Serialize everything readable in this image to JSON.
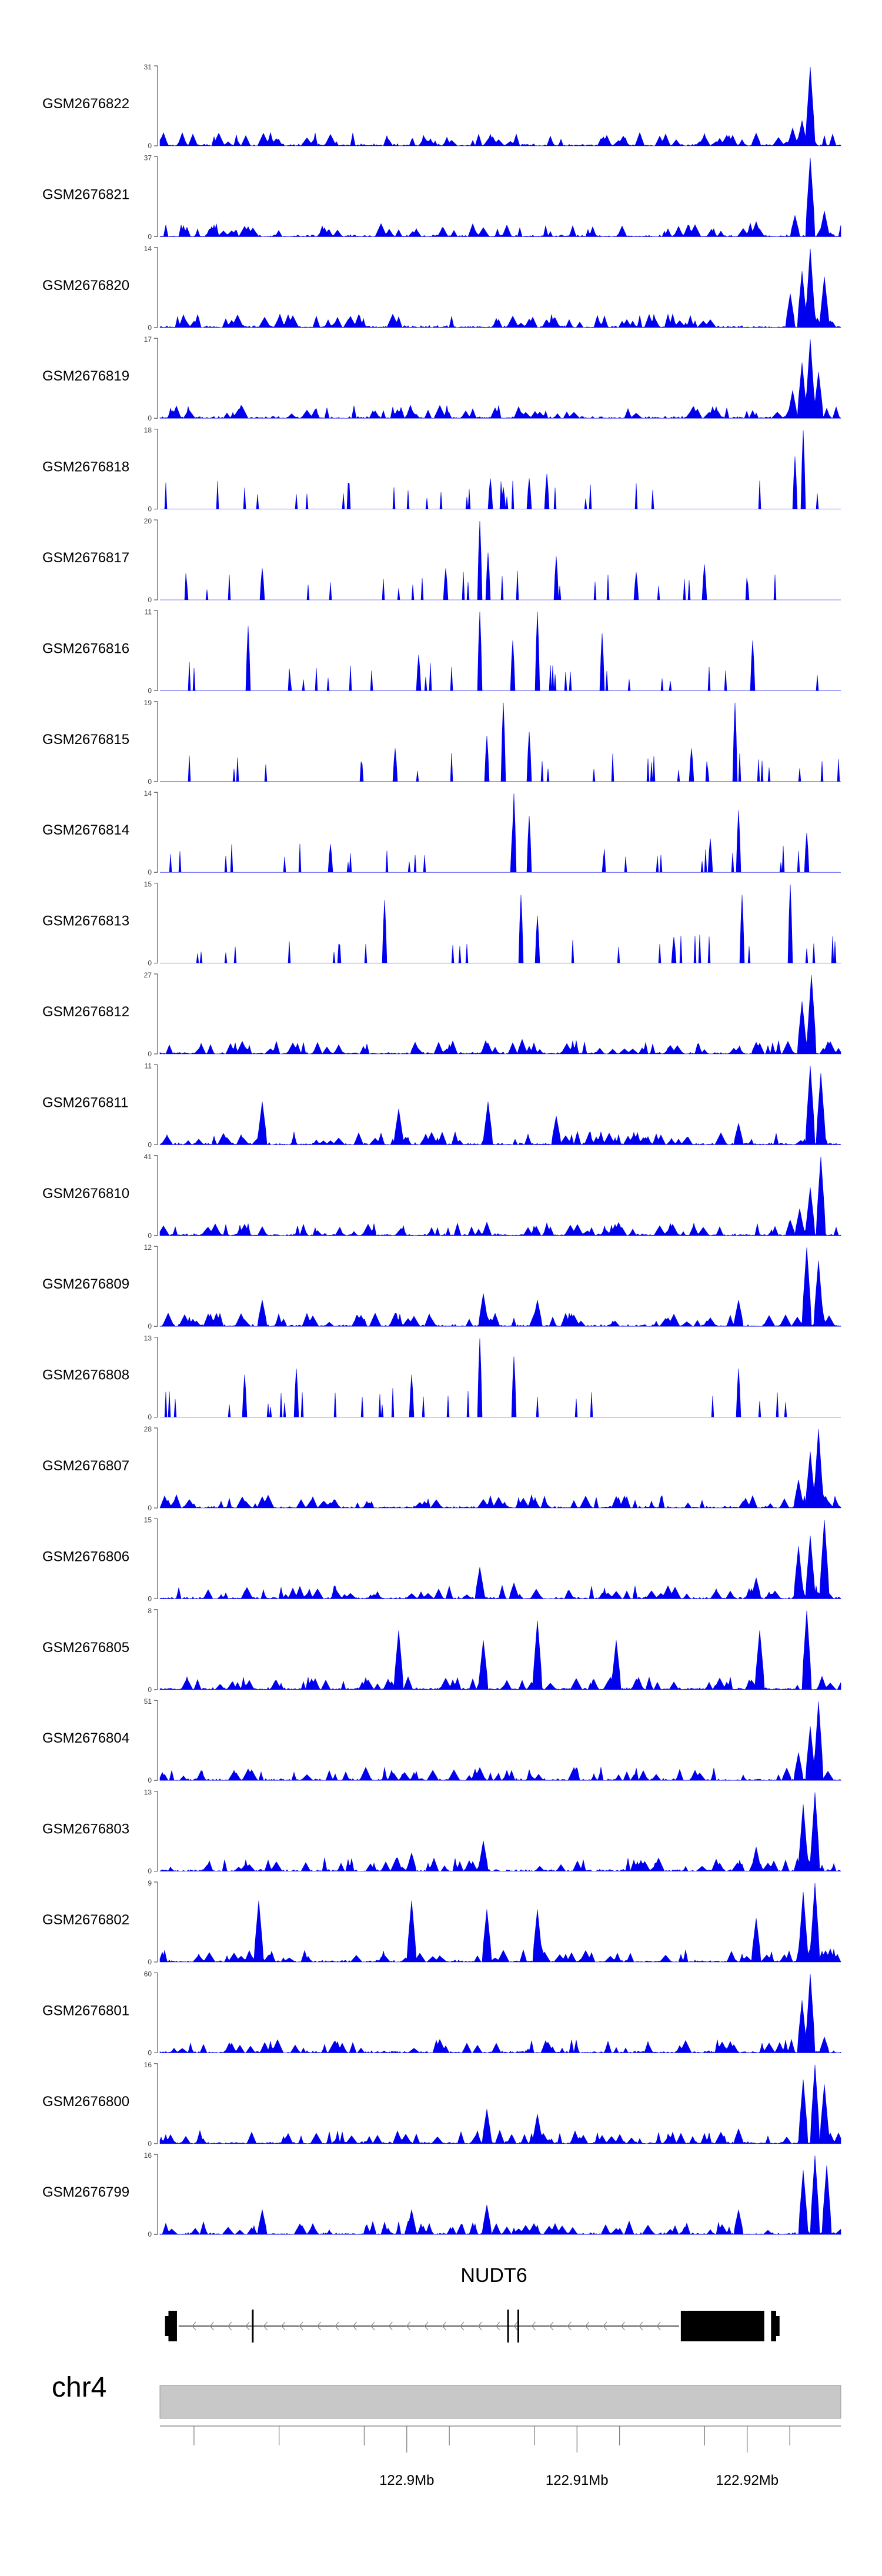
{
  "chart_data": {
    "type": "area",
    "title": "",
    "region": {
      "chromosome": "chr4",
      "start": 122.8855,
      "end": 122.9255,
      "unit": "Mb",
      "axis_ticks": [
        122.9,
        122.91,
        122.92
      ],
      "axis_labels": [
        "122.9Mb",
        "122.91Mb",
        "122.92Mb"
      ],
      "minor_ticks": [
        122.8875,
        122.8925,
        122.8975,
        122.9025,
        122.9075,
        122.9125,
        122.9175,
        122.9225
      ]
    },
    "tracks": [
      {
        "name": "GSM2676822",
        "ymax": "31",
        "ymin": "0",
        "style": "dense",
        "peaks": [
          [
            122.9237,
            31
          ],
          [
            122.9232,
            10
          ],
          [
            122.9227,
            7
          ],
          [
            122.9205,
            5
          ]
        ]
      },
      {
        "name": "GSM2676821",
        "ymax": "37",
        "ymin": "0",
        "style": "dense",
        "peaks": [
          [
            122.9237,
            37
          ],
          [
            122.9245,
            12
          ],
          [
            122.9228,
            10
          ],
          [
            122.9205,
            7
          ]
        ]
      },
      {
        "name": "GSM2676820",
        "ymax": "14",
        "ymin": "0",
        "style": "dense",
        "peaks": [
          [
            122.9237,
            14
          ],
          [
            122.9232,
            10
          ],
          [
            122.9245,
            9
          ],
          [
            122.9225,
            6
          ]
        ]
      },
      {
        "name": "GSM2676819",
        "ymax": "17",
        "ymin": "0",
        "style": "dense",
        "peaks": [
          [
            122.9237,
            17
          ],
          [
            122.9232,
            12
          ],
          [
            122.9242,
            10
          ],
          [
            122.9227,
            6
          ]
        ]
      },
      {
        "name": "GSM2676818",
        "ymax": "18",
        "ymin": "0",
        "style": "sparse",
        "peaks": [
          [
            122.9233,
            18
          ],
          [
            122.9228,
            12
          ],
          [
            122.9082,
            8
          ],
          [
            122.9072,
            7
          ],
          [
            122.9049,
            7
          ],
          [
            122.9057,
            5
          ]
        ]
      },
      {
        "name": "GSM2676817",
        "ymax": "20",
        "ymin": "0",
        "style": "sparse",
        "peaks": [
          [
            122.9043,
            20
          ],
          [
            122.9048,
            12
          ],
          [
            122.9088,
            11
          ],
          [
            122.9023,
            8
          ],
          [
            122.8915,
            8
          ],
          [
            122.9175,
            9
          ],
          [
            122.9135,
            7
          ]
        ]
      },
      {
        "name": "GSM2676816",
        "ymax": "11",
        "ymin": "0",
        "style": "sparse",
        "peaks": [
          [
            122.9043,
            11
          ],
          [
            122.9077,
            11
          ],
          [
            122.8907,
            9
          ],
          [
            122.9115,
            8
          ],
          [
            122.9203,
            7
          ],
          [
            122.9062,
            7
          ],
          [
            122.9007,
            5
          ]
        ]
      },
      {
        "name": "GSM2676815",
        "ymax": "19",
        "ymin": "0",
        "style": "sparse",
        "peaks": [
          [
            122.9193,
            19
          ],
          [
            122.9057,
            19
          ],
          [
            122.9072,
            12
          ],
          [
            122.9047,
            11
          ],
          [
            122.8993,
            8
          ],
          [
            122.9167,
            8
          ]
        ]
      },
      {
        "name": "GSM2676814",
        "ymax": "14",
        "ymin": "0",
        "style": "sparse",
        "peaks": [
          [
            122.9063,
            14
          ],
          [
            122.9072,
            10
          ],
          [
            122.9195,
            11
          ],
          [
            122.9178,
            6
          ],
          [
            122.8955,
            5
          ],
          [
            122.9235,
            7
          ]
        ]
      },
      {
        "name": "GSM2676813",
        "ymax": "15",
        "ymin": "0",
        "style": "sparse",
        "peaks": [
          [
            122.9225,
            15
          ],
          [
            122.9197,
            13
          ],
          [
            122.9067,
            13
          ],
          [
            122.8987,
            12
          ],
          [
            122.9077,
            9
          ],
          [
            122.9157,
            5
          ]
        ]
      },
      {
        "name": "GSM2676812",
        "ymax": "27",
        "ymin": "0",
        "style": "dense",
        "peaks": [
          [
            122.9238,
            27
          ],
          [
            122.9232,
            18
          ],
          [
            122.9068,
            5
          ],
          [
            122.9005,
            4
          ],
          [
            122.9205,
            4
          ]
        ]
      },
      {
        "name": "GSM2676811",
        "ymax": "11",
        "ymin": "0",
        "style": "dense",
        "peaks": [
          [
            122.9237,
            11
          ],
          [
            122.9243,
            10
          ],
          [
            122.9048,
            6
          ],
          [
            122.8915,
            6
          ],
          [
            122.8995,
            5
          ],
          [
            122.9088,
            4
          ],
          [
            122.9195,
            3
          ]
        ]
      },
      {
        "name": "GSM2676810",
        "ymax": "41",
        "ymin": "0",
        "style": "dense",
        "peaks": [
          [
            122.9243,
            41
          ],
          [
            122.9237,
            25
          ],
          [
            122.9231,
            14
          ],
          [
            122.9225,
            8
          ]
        ]
      },
      {
        "name": "GSM2676809",
        "ymax": "12",
        "ymin": "0",
        "style": "dense",
        "peaks": [
          [
            122.9235,
            12
          ],
          [
            122.9242,
            10
          ],
          [
            122.9045,
            5
          ],
          [
            122.9077,
            4
          ],
          [
            122.8915,
            4
          ],
          [
            122.9195,
            4
          ]
        ]
      },
      {
        "name": "GSM2676808",
        "ymax": "13",
        "ymin": "0",
        "style": "sparse",
        "peaks": [
          [
            122.9043,
            13
          ],
          [
            122.9063,
            10
          ],
          [
            122.9195,
            8
          ],
          [
            122.8935,
            8
          ],
          [
            122.8905,
            7
          ],
          [
            122.9003,
            7
          ]
        ]
      },
      {
        "name": "GSM2676807",
        "ymax": "28",
        "ymin": "0",
        "style": "dense",
        "peaks": [
          [
            122.9242,
            28
          ],
          [
            122.9237,
            20
          ],
          [
            122.923,
            10
          ],
          [
            122.8915,
            4
          ],
          [
            122.9045,
            3
          ]
        ]
      },
      {
        "name": "GSM2676806",
        "ymax": "15",
        "ymin": "0",
        "style": "dense",
        "peaks": [
          [
            122.9245,
            15
          ],
          [
            122.9237,
            12
          ],
          [
            122.923,
            10
          ],
          [
            122.9043,
            6
          ],
          [
            122.9205,
            4
          ],
          [
            122.9063,
            3
          ]
        ]
      },
      {
        "name": "GSM2676805",
        "ymax": "8",
        "ymin": "0",
        "style": "dense",
        "peaks": [
          [
            122.9235,
            8
          ],
          [
            122.9077,
            7
          ],
          [
            122.8995,
            6
          ],
          [
            122.9123,
            5
          ],
          [
            122.9207,
            6
          ],
          [
            122.9045,
            5
          ]
        ]
      },
      {
        "name": "GSM2676804",
        "ymax": "51",
        "ymin": "0",
        "style": "dense",
        "peaks": [
          [
            122.9242,
            51
          ],
          [
            122.9237,
            35
          ],
          [
            122.923,
            18
          ],
          [
            122.9223,
            8
          ]
        ]
      },
      {
        "name": "GSM2676803",
        "ymax": "13",
        "ymin": "0",
        "style": "dense",
        "peaks": [
          [
            122.924,
            13
          ],
          [
            122.9233,
            11
          ],
          [
            122.9045,
            5
          ],
          [
            122.9003,
            3
          ],
          [
            122.9205,
            4
          ]
        ]
      },
      {
        "name": "GSM2676802",
        "ymax": "9",
        "ymin": "0",
        "style": "dense",
        "peaks": [
          [
            122.924,
            9
          ],
          [
            122.9233,
            8
          ],
          [
            122.8913,
            7
          ],
          [
            122.9003,
            7
          ],
          [
            122.9047,
            6
          ],
          [
            122.9077,
            6
          ],
          [
            122.9205,
            5
          ]
        ]
      },
      {
        "name": "GSM2676801",
        "ymax": "60",
        "ymin": "0",
        "style": "dense",
        "peaks": [
          [
            122.9237,
            60
          ],
          [
            122.9232,
            40
          ],
          [
            122.9245,
            12
          ]
        ]
      },
      {
        "name": "GSM2676800",
        "ymax": "16",
        "ymin": "0",
        "style": "dense",
        "peaks": [
          [
            122.924,
            16
          ],
          [
            122.9233,
            13
          ],
          [
            122.9245,
            12
          ],
          [
            122.9047,
            7
          ],
          [
            122.9077,
            6
          ],
          [
            122.9195,
            3
          ]
        ]
      },
      {
        "name": "GSM2676799",
        "ymax": "16",
        "ymin": "0",
        "style": "dense",
        "peaks": [
          [
            122.924,
            16
          ],
          [
            122.9233,
            13
          ],
          [
            122.9247,
            14
          ],
          [
            122.9047,
            6
          ],
          [
            122.8915,
            5
          ],
          [
            122.9003,
            5
          ],
          [
            122.9195,
            5
          ]
        ]
      }
    ],
    "gene": {
      "name": "NUDT6",
      "strand": "-",
      "exons": [
        [
          122.886,
          122.8865,
          "thick"
        ],
        [
          122.8858,
          122.8861,
          "thin"
        ],
        [
          122.8909,
          122.891,
          "line"
        ],
        [
          122.9059,
          122.906,
          "line"
        ],
        [
          122.9065,
          122.9066,
          "line"
        ],
        [
          122.9161,
          122.921,
          "thick"
        ],
        [
          122.9214,
          122.9217,
          "thick"
        ],
        [
          122.9217,
          122.9219,
          "thin"
        ]
      ],
      "intron": [
        122.8866,
        122.916
      ]
    },
    "colors": {
      "fill": "#0000ee",
      "axis": "#555555",
      "gene": "#000000",
      "ideogram": "#c8c8c8"
    }
  }
}
